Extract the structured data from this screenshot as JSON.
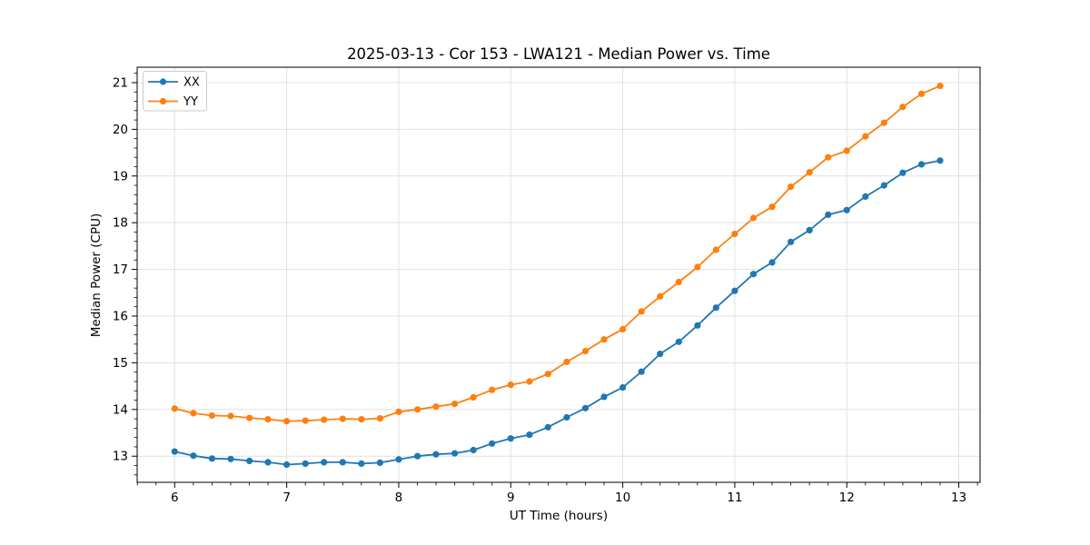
{
  "chart_data": {
    "type": "line",
    "title": "2025-03-13 - Cor 153 - LWA121 - Median Power vs. Time",
    "xlabel": "UT Time (hours)",
    "ylabel": "Median Power (CPU)",
    "xlim": [
      5.665,
      13.19
    ],
    "ylim": [
      12.44,
      21.33
    ],
    "x_ticks": [
      6,
      7,
      8,
      9,
      10,
      11,
      12,
      13
    ],
    "x_tick_labels": [
      "6",
      "7",
      "8",
      "9",
      "10",
      "11",
      "12",
      "13"
    ],
    "y_ticks": [
      13,
      14,
      15,
      16,
      17,
      18,
      19,
      20,
      21
    ],
    "y_tick_labels": [
      "13",
      "14",
      "15",
      "16",
      "17",
      "18",
      "19",
      "20",
      "21"
    ],
    "x_minor_step": 0.166667,
    "y_minor_step": 0.2,
    "grid": true,
    "grid_color": "#e0e0e0",
    "spine_color": "#000000",
    "legend_position": "upper-left",
    "x": [
      6.0,
      6.167,
      6.333,
      6.5,
      6.667,
      6.833,
      7.0,
      7.167,
      7.333,
      7.5,
      7.667,
      7.833,
      8.0,
      8.167,
      8.333,
      8.5,
      8.667,
      8.833,
      9.0,
      9.167,
      9.333,
      9.5,
      9.667,
      9.833,
      10.0,
      10.167,
      10.333,
      10.5,
      10.667,
      10.833,
      11.0,
      11.167,
      11.333,
      11.5,
      11.667,
      11.833,
      12.0,
      12.167,
      12.333,
      12.5,
      12.667,
      12.833
    ],
    "series": [
      {
        "name": "XX",
        "color": "#1f77b4",
        "values": [
          13.1,
          13.01,
          12.95,
          12.94,
          12.9,
          12.87,
          12.82,
          12.84,
          12.87,
          12.87,
          12.84,
          12.86,
          12.93,
          13.0,
          13.04,
          13.06,
          13.13,
          13.27,
          13.38,
          13.46,
          13.62,
          13.83,
          14.03,
          14.27,
          14.47,
          14.81,
          15.19,
          15.45,
          15.8,
          16.18,
          16.54,
          16.9,
          17.15,
          17.59,
          17.84,
          18.17,
          18.27,
          18.56,
          18.8,
          19.07,
          19.25,
          19.33
        ]
      },
      {
        "name": "YY",
        "color": "#ff7f0e",
        "values": [
          14.02,
          13.92,
          13.87,
          13.86,
          13.82,
          13.79,
          13.75,
          13.76,
          13.78,
          13.8,
          13.79,
          13.81,
          13.95,
          14.0,
          14.06,
          14.12,
          14.26,
          14.42,
          14.53,
          14.6,
          14.76,
          15.02,
          15.25,
          15.5,
          15.72,
          16.1,
          16.42,
          16.73,
          17.05,
          17.42,
          17.76,
          18.1,
          18.34,
          18.77,
          19.08,
          19.4,
          19.54,
          19.85,
          20.14,
          20.48,
          20.76,
          20.93
        ]
      }
    ]
  }
}
